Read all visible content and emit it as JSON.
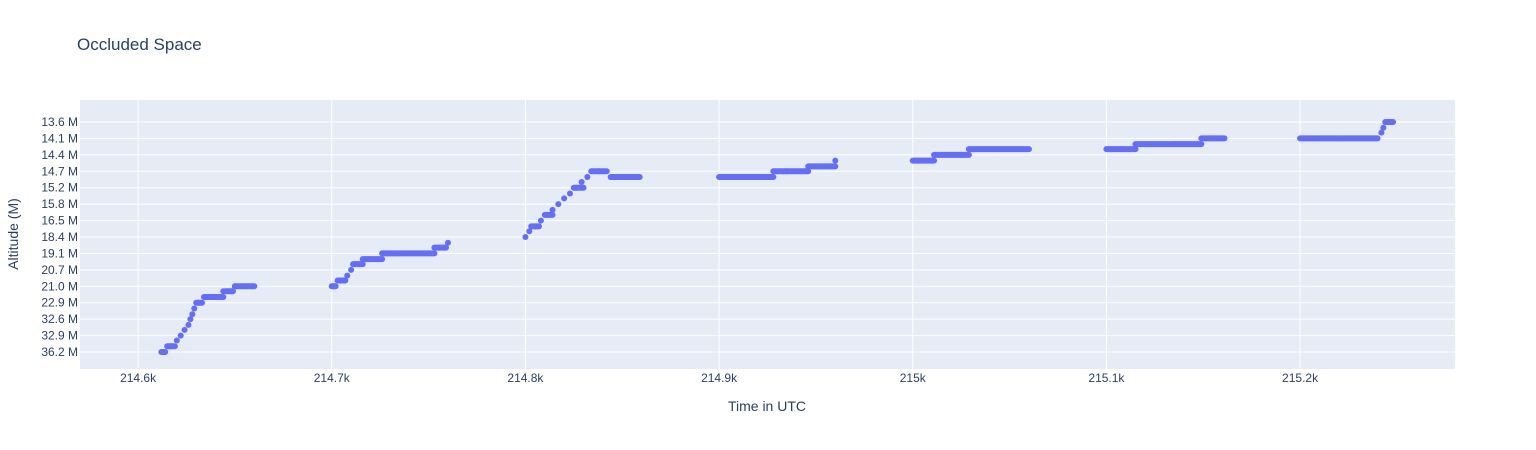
{
  "chart_data": {
    "type": "scatter",
    "title": "Occluded Space",
    "xlabel": "Time in UTC",
    "ylabel": "Altitude (M)",
    "xlim": [
      214570,
      215280
    ],
    "x_ticks": [
      {
        "value": 214600,
        "label": "214.6k"
      },
      {
        "value": 214700,
        "label": "214.7k"
      },
      {
        "value": 214800,
        "label": "214.8k"
      },
      {
        "value": 214900,
        "label": "214.9k"
      },
      {
        "value": 215000,
        "label": "215k"
      },
      {
        "value": 215100,
        "label": "215.1k"
      },
      {
        "value": 215200,
        "label": "215.2k"
      }
    ],
    "y_categories": [
      "36.2 M",
      "32.9 M",
      "32.6 M",
      "22.9 M",
      "21.0 M",
      "20.7 M",
      "19.1 M",
      "18.4 M",
      "16.5 M",
      "15.8 M",
      "15.2 M",
      "14.7 M",
      "14.4 M",
      "14.1 M",
      "13.6 M"
    ],
    "grid": true,
    "marker_color": "#636efa",
    "series": [
      {
        "points": [
          [
            214613,
            0
          ],
          [
            214617,
            0.35
          ],
          [
            214620,
            0.7
          ],
          [
            214622,
            1
          ],
          [
            214624,
            1.35
          ],
          [
            214626,
            1.65
          ],
          [
            214627,
            2
          ],
          [
            214628,
            2.3
          ],
          [
            214629,
            2.65
          ],
          [
            214631,
            3
          ],
          [
            214635,
            3.35
          ],
          [
            214644,
            3.7
          ],
          [
            214650,
            4
          ]
        ],
        "segments": [
          [
            214612,
            214614,
            0
          ],
          [
            214615,
            214619,
            0.35
          ],
          [
            214630,
            214633,
            3
          ],
          [
            214634,
            214644,
            3.35
          ],
          [
            214645,
            214649,
            3.7
          ],
          [
            214650,
            214660,
            4
          ]
        ]
      },
      {
        "points": [
          [
            214701,
            4
          ],
          [
            214704,
            4.35
          ],
          [
            214708,
            4.65
          ],
          [
            214710,
            5
          ],
          [
            214713,
            5.35
          ],
          [
            214719,
            5.65
          ],
          [
            214734,
            6
          ],
          [
            214755,
            6.35
          ],
          [
            214760,
            6.65
          ]
        ],
        "segments": [
          [
            214700,
            214702,
            4
          ],
          [
            214703,
            214707,
            4.35
          ],
          [
            214711,
            214716,
            5.35
          ],
          [
            214716,
            214726,
            5.65
          ],
          [
            214726,
            214753,
            6
          ],
          [
            214753,
            214759,
            6.35
          ]
        ]
      },
      {
        "points": [
          [
            214800,
            7
          ],
          [
            214802,
            7.35
          ],
          [
            214805,
            7.65
          ],
          [
            214808,
            8
          ],
          [
            214811,
            8.35
          ],
          [
            214814,
            8.65
          ],
          [
            214817,
            9
          ],
          [
            214820,
            9.35
          ],
          [
            214823,
            9.65
          ],
          [
            214826,
            10
          ],
          [
            214829,
            10.35
          ],
          [
            214832,
            10.65
          ],
          [
            214838,
            11
          ],
          [
            214850,
            10.65
          ]
        ],
        "segments": [
          [
            214803,
            214807,
            7.65
          ],
          [
            214810,
            214814,
            8.35
          ],
          [
            214825,
            214830,
            10
          ],
          [
            214834,
            214842,
            11
          ],
          [
            214844,
            214859,
            10.65
          ]
        ]
      },
      {
        "points": [
          [
            214914,
            10.65
          ],
          [
            214935,
            11.0
          ],
          [
            214950,
            11.3
          ],
          [
            214960,
            11.65
          ]
        ],
        "segments": [
          [
            214900,
            214928,
            10.65
          ],
          [
            214928,
            214946,
            11.0
          ],
          [
            214946,
            214960,
            11.3
          ]
        ]
      },
      {
        "points": [
          [
            215010,
            11.65
          ],
          [
            215025,
            12
          ],
          [
            215045,
            12.35
          ]
        ],
        "segments": [
          [
            215000,
            215011,
            11.65
          ],
          [
            215011,
            215029,
            12
          ],
          [
            215029,
            215060,
            12.35
          ]
        ]
      },
      {
        "points": [
          [
            215108,
            12.35
          ],
          [
            215135,
            12.65
          ],
          [
            215155,
            13
          ]
        ],
        "segments": [
          [
            215100,
            215115,
            12.35
          ],
          [
            215115,
            215149,
            12.65
          ],
          [
            215149,
            215161,
            13
          ]
        ]
      },
      {
        "points": [
          [
            215220,
            13
          ],
          [
            215242,
            13.35
          ],
          [
            215243,
            13.65
          ],
          [
            215246,
            14
          ]
        ],
        "segments": [
          [
            215200,
            215240,
            13
          ],
          [
            215244,
            215248,
            14
          ]
        ]
      }
    ]
  }
}
